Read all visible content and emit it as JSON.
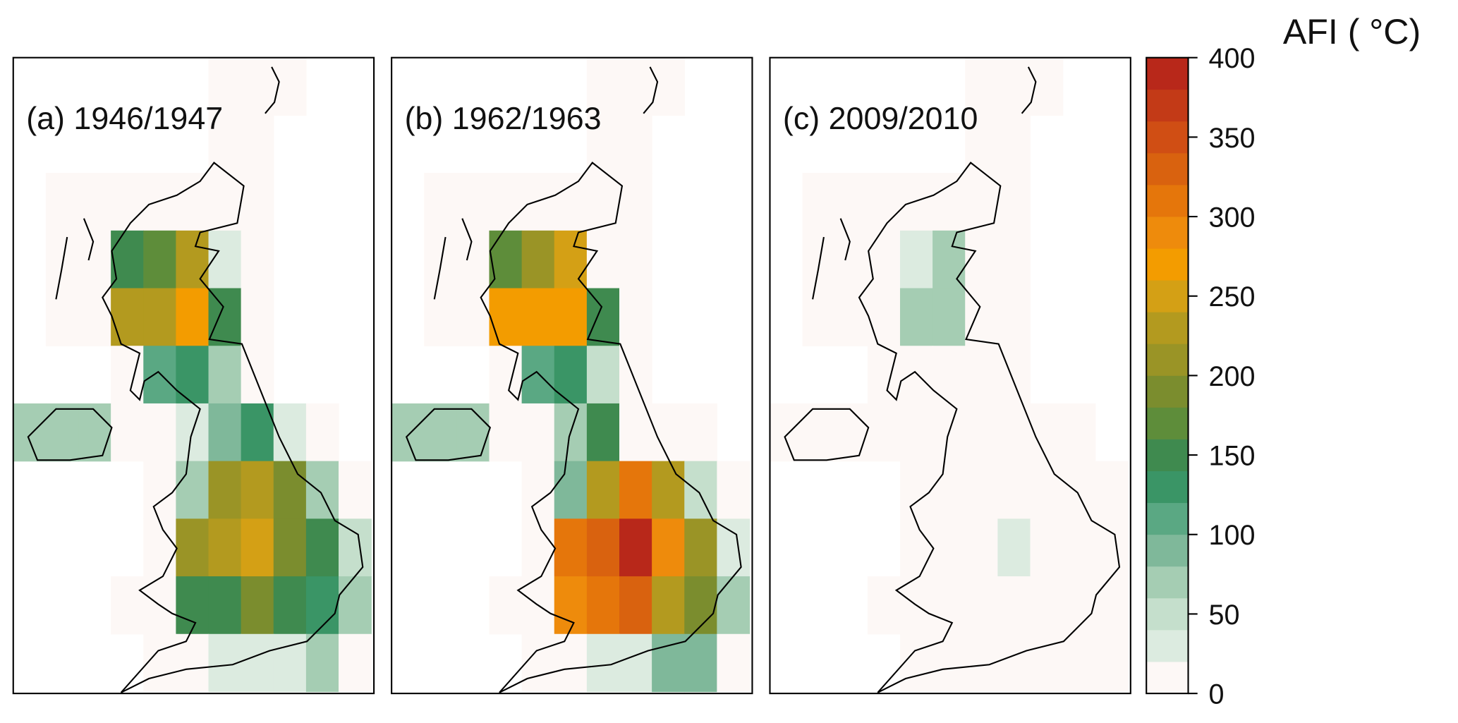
{
  "panels": [
    {
      "label": "(a) 1946/1947",
      "grid": [
        [
          null,
          null,
          null,
          null,
          null,
          null,
          5,
          5,
          5,
          null,
          null
        ],
        [
          null,
          null,
          null,
          null,
          null,
          null,
          5,
          5,
          null,
          null,
          null
        ],
        [
          null,
          5,
          5,
          5,
          5,
          5,
          5,
          5,
          null,
          null,
          null
        ],
        [
          null,
          5,
          5,
          140,
          170,
          220,
          30,
          5,
          null,
          null,
          null
        ],
        [
          null,
          5,
          5,
          230,
          230,
          260,
          140,
          5,
          null,
          null,
          null
        ],
        [
          null,
          null,
          null,
          5,
          110,
          130,
          70,
          5,
          null,
          null,
          null
        ],
        [
          60,
          70,
          70,
          5,
          5,
          30,
          80,
          130,
          30,
          5,
          null
        ],
        [
          null,
          null,
          null,
          null,
          5,
          70,
          200,
          230,
          190,
          70,
          5
        ],
        [
          null,
          null,
          null,
          null,
          5,
          200,
          230,
          250,
          190,
          150,
          40
        ],
        [
          null,
          null,
          null,
          5,
          5,
          140,
          150,
          180,
          140,
          130,
          70
        ],
        [
          null,
          null,
          null,
          null,
          5,
          5,
          20,
          30,
          30,
          70,
          5
        ]
      ]
    },
    {
      "label": "(b) 1962/1963",
      "grid": [
        [
          null,
          null,
          null,
          null,
          null,
          null,
          5,
          5,
          5,
          null,
          null
        ],
        [
          null,
          null,
          null,
          null,
          null,
          null,
          5,
          5,
          null,
          null,
          null
        ],
        [
          null,
          5,
          5,
          5,
          5,
          5,
          5,
          5,
          null,
          null,
          null
        ],
        [
          null,
          5,
          5,
          170,
          210,
          240,
          5,
          5,
          null,
          null,
          null
        ],
        [
          null,
          5,
          5,
          260,
          270,
          260,
          140,
          5,
          null,
          null,
          null
        ],
        [
          null,
          null,
          null,
          5,
          110,
          130,
          40,
          5,
          null,
          null,
          null
        ],
        [
          60,
          60,
          60,
          5,
          5,
          70,
          140,
          5,
          5,
          5,
          null
        ],
        [
          null,
          null,
          null,
          null,
          5,
          90,
          230,
          300,
          220,
          40,
          5
        ],
        [
          null,
          null,
          null,
          null,
          5,
          300,
          330,
          380,
          280,
          210,
          30
        ],
        [
          null,
          null,
          null,
          5,
          5,
          290,
          310,
          320,
          230,
          180,
          60
        ],
        [
          null,
          null,
          null,
          null,
          5,
          5,
          30,
          30,
          80,
          90,
          5
        ]
      ]
    },
    {
      "label": "(c) 2009/2010",
      "grid": [
        [
          null,
          null,
          null,
          null,
          null,
          null,
          5,
          5,
          5,
          null,
          null
        ],
        [
          null,
          null,
          null,
          null,
          null,
          null,
          5,
          5,
          null,
          null,
          null
        ],
        [
          null,
          5,
          5,
          5,
          5,
          5,
          5,
          5,
          null,
          null,
          null
        ],
        [
          null,
          5,
          5,
          5,
          30,
          60,
          5,
          5,
          null,
          null,
          null
        ],
        [
          null,
          5,
          5,
          5,
          60,
          60,
          5,
          5,
          null,
          null,
          null
        ],
        [
          null,
          null,
          null,
          5,
          5,
          5,
          5,
          5,
          null,
          null,
          null
        ],
        [
          5,
          5,
          5,
          5,
          5,
          5,
          5,
          5,
          5,
          5,
          null
        ],
        [
          null,
          null,
          null,
          null,
          5,
          5,
          5,
          5,
          5,
          5,
          5
        ],
        [
          null,
          null,
          null,
          null,
          5,
          5,
          5,
          30,
          5,
          5,
          5
        ],
        [
          null,
          null,
          null,
          5,
          5,
          5,
          5,
          5,
          5,
          5,
          5
        ],
        [
          null,
          null,
          null,
          null,
          5,
          5,
          5,
          5,
          5,
          5,
          5
        ]
      ]
    }
  ],
  "colorbar": {
    "title": "AFI ( °C)",
    "clim": [
      0,
      400
    ],
    "ticks": [
      0,
      50,
      100,
      150,
      200,
      250,
      300,
      350,
      400
    ],
    "colors": [
      "#fdf8f6",
      "#dcebe0",
      "#c5dfcc",
      "#a5cdb3",
      "#7fb89a",
      "#5aa883",
      "#3a9566",
      "#3f8a4f",
      "#5e8d3a",
      "#7b8d2e",
      "#9a9426",
      "#b39a1f",
      "#d4a015",
      "#f39c00",
      "#ee8b0c",
      "#e5760b",
      "#d9620f",
      "#d04e14",
      "#c33a17",
      "#b8281a"
    ]
  }
}
